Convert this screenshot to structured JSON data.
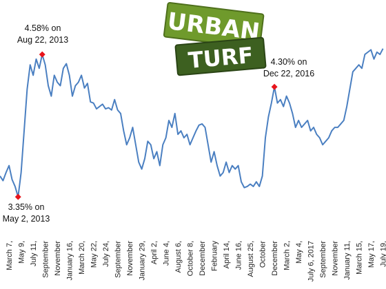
{
  "chart_data": {
    "type": "line",
    "logo": [
      "URBAN",
      "TURF"
    ],
    "annotations": [
      {
        "text": [
          "4.58% on",
          "Aug 22, 2013"
        ]
      },
      {
        "text": [
          "3.35% on",
          "May 2, 2013"
        ]
      },
      {
        "text": [
          "4.30% on",
          "Dec 22, 2016"
        ]
      }
    ],
    "categories": [
      null,
      null,
      null,
      "March 7,",
      null,
      null,
      null,
      "May 9,",
      null,
      null,
      null,
      "July 11,",
      null,
      null,
      null,
      "September",
      null,
      null,
      null,
      "November",
      null,
      null,
      null,
      "January 16,",
      null,
      null,
      null,
      "March 20,",
      null,
      null,
      null,
      "May 22,",
      null,
      null,
      null,
      "July 24,",
      null,
      null,
      null,
      "September",
      null,
      null,
      null,
      "November",
      null,
      null,
      null,
      "January 29,",
      null,
      null,
      null,
      "April 2,",
      null,
      null,
      null,
      "June 4,",
      null,
      null,
      null,
      "August 6,",
      null,
      null,
      null,
      "October 8,",
      null,
      null,
      null,
      "December",
      null,
      null,
      null,
      "February",
      null,
      null,
      null,
      "April 14,",
      null,
      null,
      null,
      "June 16,",
      null,
      null,
      null,
      "August 25,",
      null,
      null,
      null,
      "October",
      null,
      null,
      null,
      "December",
      null,
      null,
      null,
      "March 2,",
      null,
      null,
      null,
      "May 4,",
      null,
      null,
      null,
      "July 6, 2017",
      null,
      null,
      null,
      "September",
      null,
      null,
      null,
      "November",
      null,
      null,
      null,
      "January 11,",
      null,
      null,
      null,
      "March 15,",
      null,
      null,
      null,
      "May 17,",
      null,
      null,
      null,
      "July 19,"
    ],
    "series": [
      {
        "color": "#4a7fc1",
        "values": [
          3.53,
          3.49,
          3.56,
          3.62,
          3.5,
          3.44,
          3.35,
          3.56,
          3.92,
          4.28,
          4.49,
          4.4,
          4.54,
          4.46,
          4.58,
          4.49,
          4.31,
          4.22,
          4.4,
          4.34,
          4.31,
          4.46,
          4.5,
          4.4,
          4.22,
          4.31,
          4.34,
          4.4,
          4.29,
          4.33,
          4.17,
          4.16,
          4.11,
          4.13,
          4.15,
          4.11,
          4.12,
          4.1,
          4.19,
          4.1,
          4.07,
          3.92,
          3.8,
          3.86,
          3.95,
          3.8,
          3.65,
          3.59,
          3.68,
          3.83,
          3.8,
          3.68,
          3.74,
          3.62,
          3.8,
          3.86,
          4.01,
          3.95,
          4.07,
          3.89,
          3.92,
          3.86,
          3.89,
          3.8,
          3.86,
          3.92,
          3.97,
          3.98,
          3.95,
          3.8,
          3.65,
          3.74,
          3.62,
          3.53,
          3.56,
          3.65,
          3.56,
          3.62,
          3.59,
          3.62,
          3.48,
          3.43,
          3.44,
          3.46,
          3.44,
          3.48,
          3.44,
          3.53,
          3.86,
          4.04,
          4.16,
          4.3,
          4.16,
          4.19,
          4.13,
          4.22,
          4.16,
          4.07,
          3.95,
          4.01,
          3.95,
          3.98,
          4.01,
          3.92,
          3.95,
          3.89,
          3.86,
          3.8,
          3.83,
          3.86,
          3.92,
          3.95,
          3.95,
          3.98,
          4.01,
          4.13,
          4.28,
          4.43,
          4.46,
          4.49,
          4.46,
          4.58,
          4.6,
          4.62,
          4.54,
          4.6,
          4.58,
          4.63
        ]
      }
    ],
    "ylim": [
      3.0,
      5.05
    ],
    "marker_color": "#e8141b"
  }
}
